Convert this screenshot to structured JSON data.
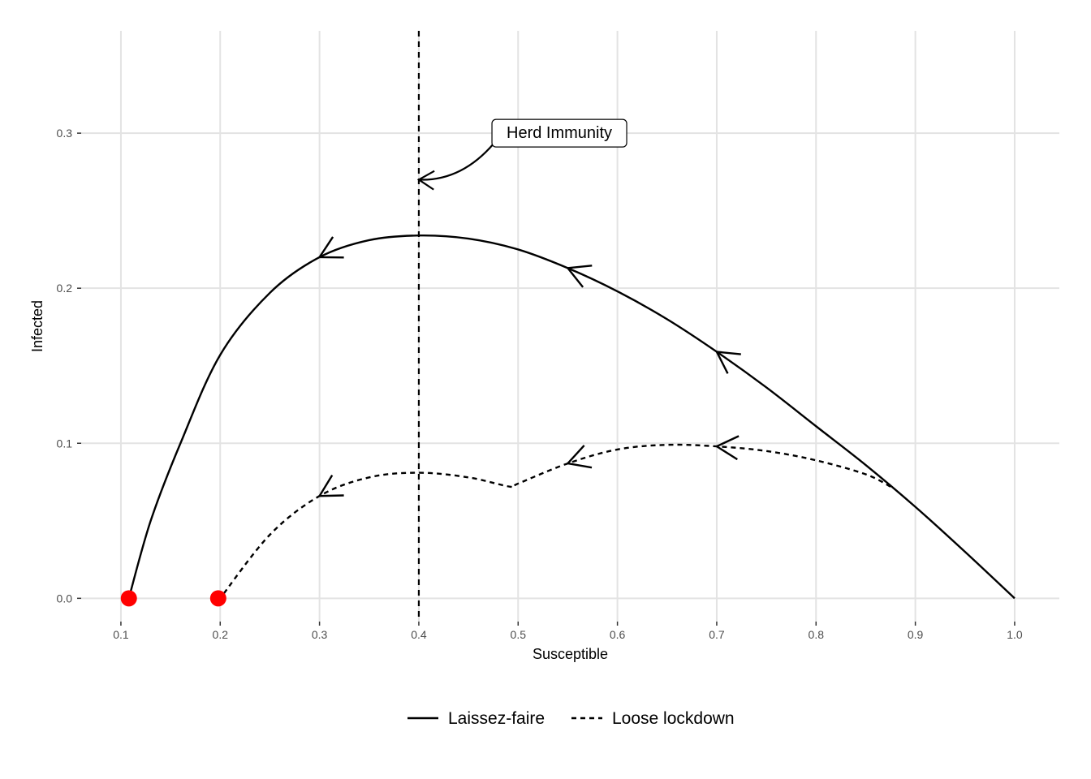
{
  "chart_data": {
    "type": "line",
    "title": "",
    "xlabel": "Susceptible",
    "ylabel": "Infected",
    "xlim": [
      0.06,
      1.045
    ],
    "ylim": [
      -0.015,
      0.366
    ],
    "x_ticks": [
      0.1,
      0.2,
      0.3,
      0.4,
      0.5,
      0.6,
      0.7,
      0.8,
      0.9,
      1.0
    ],
    "x_tick_labels": [
      "0.1",
      "0.2",
      "0.3",
      "0.4",
      "0.5",
      "0.6",
      "0.7",
      "0.8",
      "0.9",
      "1.0"
    ],
    "y_ticks": [
      0.0,
      0.1,
      0.2,
      0.3
    ],
    "y_tick_labels": [
      "0.0",
      "0.1",
      "0.2",
      "0.3"
    ],
    "grid": true,
    "legend_position": "bottom",
    "series": [
      {
        "name": "Laissez-faire",
        "linestyle": "solid",
        "color": "#000000",
        "x": [
          1.0,
          0.95,
          0.9,
          0.85,
          0.8,
          0.75,
          0.7,
          0.65,
          0.6,
          0.55,
          0.5,
          0.45,
          0.4,
          0.35,
          0.3,
          0.25,
          0.2,
          0.16,
          0.13,
          0.108
        ],
        "y": [
          0.0,
          0.03,
          0.059,
          0.086,
          0.111,
          0.136,
          0.159,
          0.18,
          0.198,
          0.213,
          0.225,
          0.232,
          0.234,
          0.231,
          0.22,
          0.197,
          0.157,
          0.1,
          0.05,
          0.0
        ],
        "arrows_at": [
          [
            0.7,
            0.159
          ],
          [
            0.55,
            0.213
          ],
          [
            0.3,
            0.22
          ]
        ]
      },
      {
        "name": "Loose lockdown",
        "linestyle": "dashed",
        "color": "#000000",
        "x": [
          0.875,
          0.85,
          0.8,
          0.75,
          0.7,
          0.65,
          0.6,
          0.55,
          0.5,
          0.492,
          0.45,
          0.4,
          0.35,
          0.3,
          0.25,
          0.2
        ],
        "y": [
          0.072,
          0.08,
          0.089,
          0.095,
          0.098,
          0.099,
          0.096,
          0.087,
          0.074,
          0.072,
          0.078,
          0.081,
          0.078,
          0.066,
          0.041,
          0.0
        ],
        "arrows_at": [
          [
            0.7,
            0.098
          ],
          [
            0.55,
            0.087
          ],
          [
            0.3,
            0.066
          ]
        ]
      }
    ],
    "endpoints": {
      "color": "#ff0000",
      "points": [
        [
          0.108,
          0.0
        ],
        [
          0.198,
          0.0
        ]
      ]
    },
    "reference_line": {
      "x": 0.4,
      "linestyle": "dashed",
      "label": "Herd Immunity",
      "label_at": [
        0.49,
        0.3
      ],
      "arrow_to": [
        0.4,
        0.27
      ]
    }
  }
}
